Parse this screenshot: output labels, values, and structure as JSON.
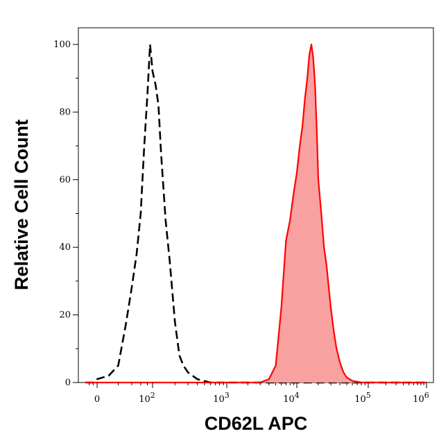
{
  "chart_data": {
    "type": "area",
    "xlabel": "CD62L APC",
    "ylabel": "Relative Cell Count",
    "x_scale": "biexponential",
    "ylim": [
      0,
      105
    ],
    "grid": false,
    "x_ticks": [
      {
        "value": 0,
        "base": "0",
        "exp": ""
      },
      {
        "value": 100,
        "base": "10",
        "exp": "2"
      },
      {
        "value": 1000,
        "base": "10",
        "exp": "3"
      },
      {
        "value": 10000,
        "base": "10",
        "exp": "4"
      },
      {
        "value": 100000,
        "base": "10",
        "exp": "5"
      },
      {
        "value": 1000000,
        "base": "10",
        "exp": "6"
      }
    ],
    "y_ticks": [
      0,
      20,
      40,
      60,
      80,
      100
    ],
    "series": [
      {
        "style": "dashed",
        "color": "#000000",
        "filled": false,
        "x": [
          -30,
          -10,
          0,
          10,
          20,
          30,
          40,
          50,
          60,
          70,
          80,
          90,
          100,
          110,
          120,
          130,
          150,
          170,
          200,
          230,
          260,
          300,
          400,
          600,
          1000,
          3000,
          10000,
          100000,
          1000000
        ],
        "y": [
          0,
          0,
          1,
          2,
          5,
          17,
          28,
          38,
          50,
          70,
          85,
          100,
          92,
          88,
          82,
          68,
          48,
          36,
          18,
          8,
          5,
          3,
          1,
          0,
          0,
          0,
          0,
          0,
          0
        ]
      },
      {
        "style": "solid",
        "color": "#ff0000",
        "fill": "#f9a0a0",
        "filled": true,
        "x": [
          -30,
          0,
          100,
          1000,
          3000,
          4000,
          5000,
          6000,
          7000,
          8000,
          9000,
          10000,
          11000,
          12000,
          13000,
          14000,
          15000,
          16000,
          17000,
          18000,
          19000,
          20000,
          22000,
          24000,
          26000,
          28000,
          30000,
          33000,
          36000,
          40000,
          45000,
          50000,
          60000,
          80000,
          100000,
          1000000
        ],
        "y": [
          0,
          0,
          0,
          0,
          0,
          1,
          5,
          22,
          42,
          48,
          56,
          62,
          70,
          76,
          84,
          90,
          97,
          100,
          96,
          88,
          75,
          60,
          50,
          40,
          35,
          28,
          22,
          15,
          10,
          6,
          3,
          1.5,
          0.5,
          0,
          0,
          0
        ]
      }
    ]
  }
}
